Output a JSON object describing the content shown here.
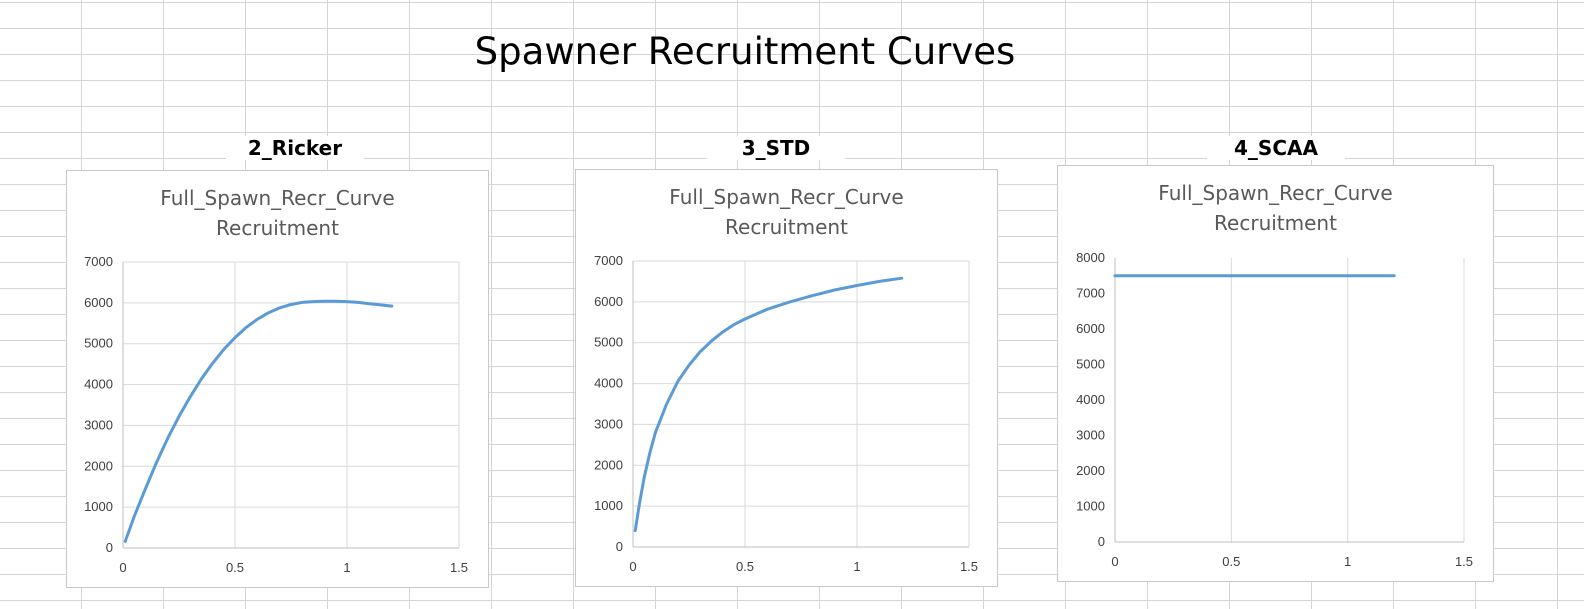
{
  "page": {
    "title": "Spawner Recruitment Curves"
  },
  "colors": {
    "line": "#5b9bd5",
    "grid": "#d9d9d9",
    "text": "#595959"
  },
  "chart_data": [
    {
      "type": "line",
      "label": "2_Ricker",
      "title_line1": "Full_Spawn_Recr_Curve",
      "title_line2": "Recruitment",
      "xlim": [
        0,
        1.5
      ],
      "ylim": [
        0,
        7000
      ],
      "xticks": [
        "0",
        "0.5",
        "1",
        "1.5"
      ],
      "yticks": [
        "0",
        "1000",
        "2000",
        "3000",
        "4000",
        "5000",
        "6000",
        "7000"
      ],
      "grid": true,
      "x": [
        0.01,
        0.05,
        0.1,
        0.15,
        0.2,
        0.25,
        0.3,
        0.35,
        0.4,
        0.45,
        0.5,
        0.55,
        0.6,
        0.65,
        0.7,
        0.75,
        0.8,
        0.85,
        0.9,
        0.95,
        1.0,
        1.05,
        1.1,
        1.15,
        1.2
      ],
      "y": [
        160,
        770,
        1450,
        2100,
        2690,
        3220,
        3700,
        4140,
        4520,
        4860,
        5150,
        5400,
        5600,
        5760,
        5880,
        5960,
        6010,
        6030,
        6040,
        6040,
        6030,
        6010,
        5980,
        5950,
        5920
      ]
    },
    {
      "type": "line",
      "label": "3_STD",
      "title_line1": "Full_Spawn_Recr_Curve",
      "title_line2": "Recruitment",
      "xlim": [
        0,
        1.5
      ],
      "ylim": [
        0,
        7000
      ],
      "xticks": [
        "0",
        "0.5",
        "1",
        "1.5"
      ],
      "yticks": [
        "0",
        "1000",
        "2000",
        "3000",
        "4000",
        "5000",
        "6000",
        "7000"
      ],
      "grid": true,
      "x": [
        0.01,
        0.03,
        0.05,
        0.075,
        0.1,
        0.15,
        0.2,
        0.25,
        0.3,
        0.35,
        0.4,
        0.45,
        0.5,
        0.6,
        0.7,
        0.8,
        0.9,
        1.0,
        1.1,
        1.2
      ],
      "y": [
        400,
        1100,
        1700,
        2300,
        2800,
        3500,
        4050,
        4450,
        4780,
        5040,
        5260,
        5440,
        5580,
        5820,
        6000,
        6150,
        6290,
        6400,
        6500,
        6580
      ]
    },
    {
      "type": "line",
      "label": "4_SCAA",
      "title_line1": "Full_Spawn_Recr_Curve",
      "title_line2": "Recruitment",
      "xlim": [
        0,
        1.5
      ],
      "ylim": [
        0,
        8000
      ],
      "xticks": [
        "0",
        "0.5",
        "1",
        "1.5"
      ],
      "yticks": [
        "0",
        "1000",
        "2000",
        "3000",
        "4000",
        "5000",
        "6000",
        "7000",
        "8000"
      ],
      "grid": true,
      "x": [
        0.0,
        0.3,
        0.6,
        0.9,
        1.2
      ],
      "y": [
        7500,
        7500,
        7500,
        7500,
        7500
      ]
    }
  ]
}
